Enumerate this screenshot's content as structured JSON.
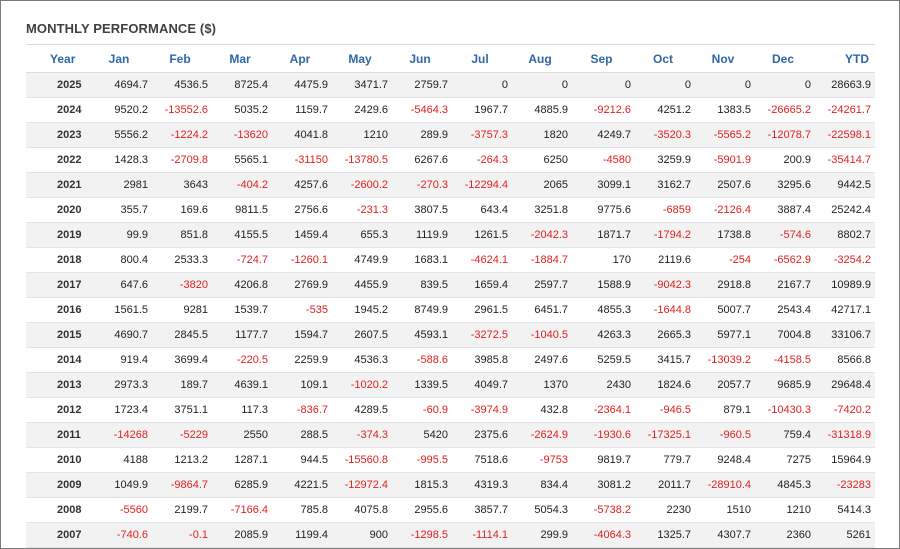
{
  "panel": {
    "title": "MONTHLY PERFORMANCE ($)",
    "colors": {
      "header_text": "#2f67a7",
      "negative_text": "#e02020",
      "stripe": "#f2f2f2"
    }
  },
  "table": {
    "columns": [
      "Year",
      "Jan",
      "Feb",
      "Mar",
      "Apr",
      "May",
      "Jun",
      "Jul",
      "Aug",
      "Sep",
      "Oct",
      "Nov",
      "Dec",
      "YTD"
    ],
    "rows": [
      [
        "2025",
        "4694.7",
        "4536.5",
        "8725.4",
        "4475.9",
        "3471.7",
        "2759.7",
        "0",
        "0",
        "0",
        "0",
        "0",
        "0",
        "28663.9"
      ],
      [
        "2024",
        "9520.2",
        "-13552.6",
        "5035.2",
        "1159.7",
        "2429.6",
        "-5464.3",
        "1967.7",
        "4885.9",
        "-9212.6",
        "4251.2",
        "1383.5",
        "-26665.2",
        "-24261.7"
      ],
      [
        "2023",
        "5556.2",
        "-1224.2",
        "-13620",
        "4041.8",
        "1210",
        "289.9",
        "-3757.3",
        "1820",
        "4249.7",
        "-3520.3",
        "-5565.2",
        "-12078.7",
        "-22598.1"
      ],
      [
        "2022",
        "1428.3",
        "-2709.8",
        "5565.1",
        "-31150",
        "-13780.5",
        "6267.6",
        "-264.3",
        "6250",
        "-4580",
        "3259.9",
        "-5901.9",
        "200.9",
        "-35414.7"
      ],
      [
        "2021",
        "2981",
        "3643",
        "-404.2",
        "4257.6",
        "-2600.2",
        "-270.3",
        "-12294.4",
        "2065",
        "3099.1",
        "3162.7",
        "2507.6",
        "3295.6",
        "9442.5"
      ],
      [
        "2020",
        "355.7",
        "169.6",
        "9811.5",
        "2756.6",
        "-231.3",
        "3807.5",
        "643.4",
        "3251.8",
        "9775.6",
        "-6859",
        "-2126.4",
        "3887.4",
        "25242.4"
      ],
      [
        "2019",
        "99.9",
        "851.8",
        "4155.5",
        "1459.4",
        "655.3",
        "1119.9",
        "1261.5",
        "-2042.3",
        "1871.7",
        "-1794.2",
        "1738.8",
        "-574.6",
        "8802.7"
      ],
      [
        "2018",
        "800.4",
        "2533.3",
        "-724.7",
        "-1260.1",
        "4749.9",
        "1683.1",
        "-4624.1",
        "-1884.7",
        "170",
        "2119.6",
        "-254",
        "-6562.9",
        "-3254.2"
      ],
      [
        "2017",
        "647.6",
        "-3820",
        "4206.8",
        "2769.9",
        "4455.9",
        "839.5",
        "1659.4",
        "2597.7",
        "1588.9",
        "-9042.3",
        "2918.8",
        "2167.7",
        "10989.9"
      ],
      [
        "2016",
        "1561.5",
        "9281",
        "1539.7",
        "-535",
        "1945.2",
        "8749.9",
        "2961.5",
        "6451.7",
        "4855.3",
        "-1644.8",
        "5007.7",
        "2543.4",
        "42717.1"
      ],
      [
        "2015",
        "4690.7",
        "2845.5",
        "1177.7",
        "1594.7",
        "2607.5",
        "4593.1",
        "-3272.5",
        "-1040.5",
        "4263.3",
        "2665.3",
        "5977.1",
        "7004.8",
        "33106.7"
      ],
      [
        "2014",
        "919.4",
        "3699.4",
        "-220.5",
        "2259.9",
        "4536.3",
        "-588.6",
        "3985.8",
        "2497.6",
        "5259.5",
        "3415.7",
        "-13039.2",
        "-4158.5",
        "8566.8"
      ],
      [
        "2013",
        "2973.3",
        "189.7",
        "4639.1",
        "109.1",
        "-1020.2",
        "1339.5",
        "4049.7",
        "1370",
        "2430",
        "1824.6",
        "2057.7",
        "9685.9",
        "29648.4"
      ],
      [
        "2012",
        "1723.4",
        "3751.1",
        "117.3",
        "-836.7",
        "4289.5",
        "-60.9",
        "-3974.9",
        "432.8",
        "-2364.1",
        "-946.5",
        "879.1",
        "-10430.3",
        "-7420.2"
      ],
      [
        "2011",
        "-14268",
        "-5229",
        "2550",
        "288.5",
        "-374.3",
        "5420",
        "2375.6",
        "-2624.9",
        "-1930.6",
        "-17325.1",
        "-960.5",
        "759.4",
        "-31318.9"
      ],
      [
        "2010",
        "4188",
        "1213.2",
        "1287.1",
        "944.5",
        "-15560.8",
        "-995.5",
        "7518.6",
        "-9753",
        "9819.7",
        "779.7",
        "9248.4",
        "7275",
        "15964.9"
      ],
      [
        "2009",
        "1049.9",
        "-9864.7",
        "6285.9",
        "4221.5",
        "-12972.4",
        "1815.3",
        "4319.3",
        "834.4",
        "3081.2",
        "2011.7",
        "-28910.4",
        "4845.3",
        "-23283"
      ],
      [
        "2008",
        "-5560",
        "2199.7",
        "-7166.4",
        "785.8",
        "4075.8",
        "2955.6",
        "3857.7",
        "5054.3",
        "-5738.2",
        "2230",
        "1510",
        "1210",
        "5414.3"
      ],
      [
        "2007",
        "-740.6",
        "-0.1",
        "2085.9",
        "1199.4",
        "900",
        "-1298.5",
        "-1114.1",
        "299.9",
        "-4064.3",
        "1325.7",
        "4307.7",
        "2360",
        "5261"
      ]
    ]
  }
}
